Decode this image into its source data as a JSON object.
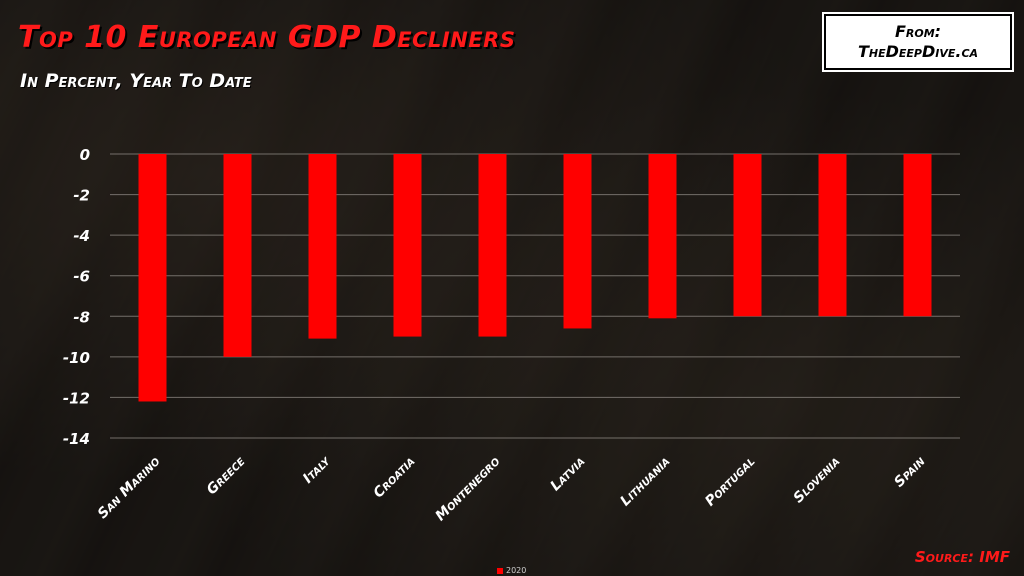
{
  "header": {
    "title": "Top 10 European GDP Decliners",
    "subtitle": "In Percent, Year To Date"
  },
  "credit": {
    "line1": "From:",
    "line2": "TheDeepDive.ca"
  },
  "source": "Source: IMF",
  "colors": {
    "bar": "#ff0000",
    "title": "#ff1a1a",
    "grid": "#8a8580"
  },
  "chart_data": {
    "type": "bar",
    "title": "Top 10 European GDP Decliners",
    "subtitle": "In Percent, Year To Date",
    "categories": [
      "San Marino",
      "Greece",
      "Italy",
      "Croatia",
      "Montenegro",
      "Latvia",
      "Lithuania",
      "Portugal",
      "Slovenia",
      "Spain"
    ],
    "series": [
      {
        "name": "2020",
        "values": [
          -12.2,
          -10.0,
          -9.1,
          -9.0,
          -9.0,
          -8.6,
          -8.1,
          -8.0,
          -8.0,
          -8.0
        ]
      }
    ],
    "ylim": [
      -14,
      0
    ],
    "yticks": [
      0,
      -2,
      -4,
      -6,
      -8,
      -10,
      -12,
      -14
    ],
    "grid": true,
    "legend": "bottom-center",
    "source": "Source: IMF"
  }
}
